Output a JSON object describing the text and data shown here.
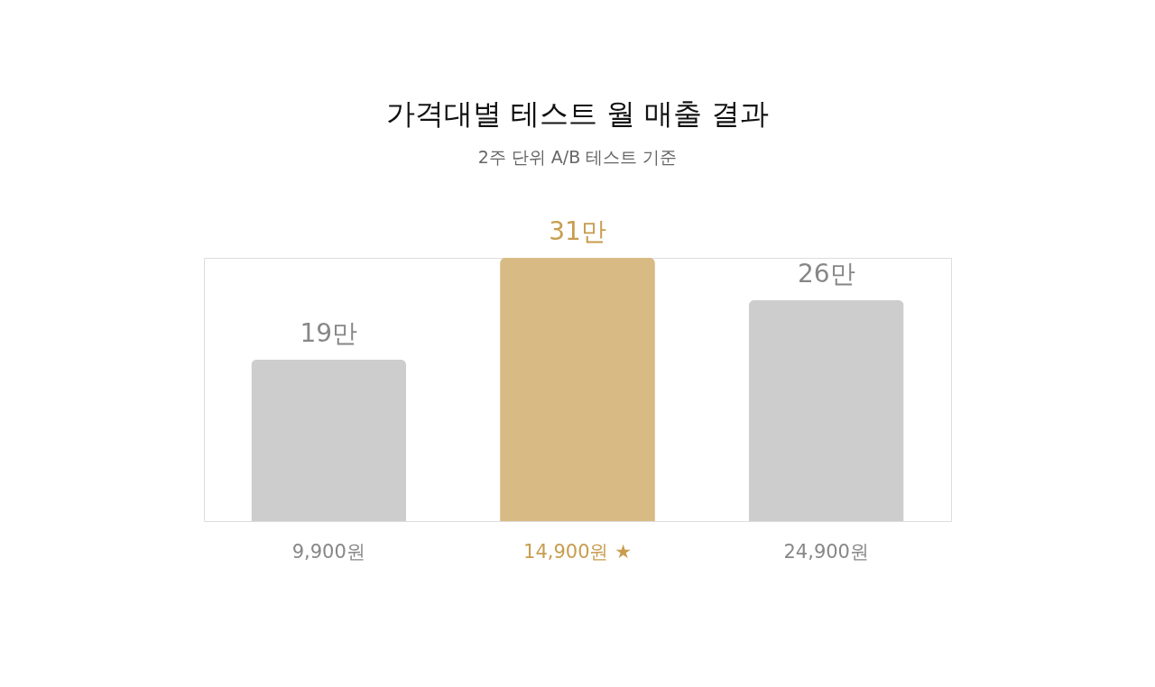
{
  "chart_data": {
    "type": "bar",
    "title": "가격대별 테스트 월 매출 결과",
    "subtitle": "2주 단위 A/B 테스트 기준",
    "categories": [
      "9,900원",
      "14,900원 ★",
      "24,900원"
    ],
    "values": [
      19,
      31,
      26
    ],
    "value_labels": [
      "19만",
      "31만",
      "26만"
    ],
    "colors": [
      "#cdcdcd",
      "#d8bb84",
      "#cdcdcd"
    ],
    "grid": false
  }
}
